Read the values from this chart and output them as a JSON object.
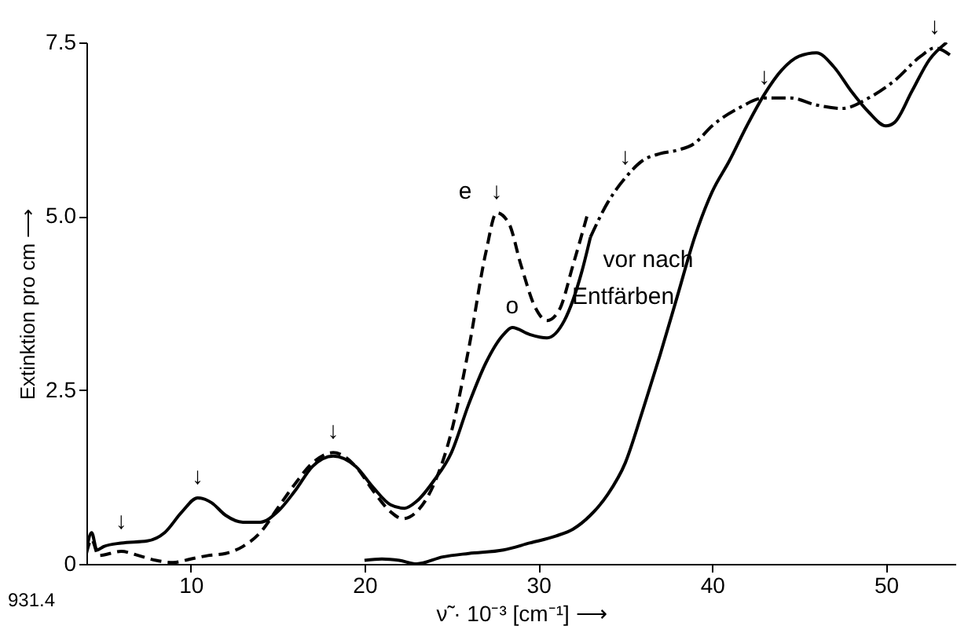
{
  "chart_data": {
    "type": "line",
    "xlabel": "ν̃ · 10⁻³ [cm⁻¹] ⟶",
    "ylabel": "Extinktion pro cm ⟶",
    "xlim": [
      4,
      54
    ],
    "ylim": [
      0,
      7.5
    ],
    "xticks": [
      10,
      20,
      30,
      40,
      50
    ],
    "yticks": [
      0,
      2.5,
      {
        "value": 5,
        "label": "5.0"
      },
      7.5
    ],
    "grid": false,
    "series": [
      {
        "color": "#000000",
        "line_style": "solid",
        "x": [
          4.0,
          4.3,
          4.6,
          5,
          6,
          7.5,
          8.5,
          9.5,
          10.4,
          11.2,
          12,
          13,
          14,
          15,
          16,
          17,
          18.2,
          19.5,
          20.5,
          21.5,
          22.3,
          23,
          24,
          25,
          26,
          27,
          28,
          28.5,
          29.5,
          30.5,
          31.5,
          32.5,
          33
        ],
        "values": [
          0.2,
          0.45,
          0.2,
          0.25,
          0.3,
          0.33,
          0.45,
          0.75,
          0.95,
          0.88,
          0.7,
          0.6,
          0.6,
          0.75,
          1.05,
          1.4,
          1.55,
          1.4,
          1.1,
          0.85,
          0.8,
          0.9,
          1.2,
          1.6,
          2.3,
          2.9,
          3.3,
          3.4,
          3.3,
          3.25,
          3.5,
          4.2,
          4.7
        ]
      },
      {
        "color": "#000000",
        "line_style": "dashed",
        "x": [
          4,
          4.3,
          4.7,
          6,
          7,
          8,
          9,
          10,
          11,
          12,
          13,
          14,
          15,
          16,
          17,
          18.2,
          19.5,
          20.5,
          21.5,
          22.2,
          23,
          24,
          25,
          26,
          27,
          27.6,
          28.3,
          29,
          29.8,
          30.5,
          31.2,
          32,
          32.8
        ],
        "values": [
          0.15,
          0.35,
          0.12,
          0.18,
          0.12,
          0.05,
          0.02,
          0.07,
          0.12,
          0.15,
          0.25,
          0.45,
          0.8,
          1.15,
          1.45,
          1.6,
          1.4,
          1.05,
          0.75,
          0.65,
          0.75,
          1.15,
          1.9,
          3.1,
          4.5,
          5.05,
          4.9,
          4.3,
          3.7,
          3.5,
          3.65,
          4.3,
          5.0
        ]
      },
      {
        "color": "#000000",
        "line_style": "dashdot",
        "x": [
          33,
          34,
          35,
          36,
          37,
          38,
          39,
          40,
          41.5,
          43,
          44.5,
          46,
          47.5,
          49,
          50.5,
          52,
          52.8,
          53.8
        ],
        "values": [
          4.7,
          5.2,
          5.55,
          5.8,
          5.9,
          5.95,
          6.05,
          6.3,
          6.55,
          6.7,
          6.7,
          6.6,
          6.55,
          6.7,
          6.95,
          7.3,
          7.42,
          7.3
        ]
      },
      {
        "color": "#000000",
        "line_style": "solid",
        "x": [
          20,
          21,
          22,
          23,
          24.5,
          26,
          28,
          29.5,
          31,
          32,
          33,
          34,
          35,
          36,
          37,
          38,
          39,
          40,
          41,
          42,
          43,
          44,
          45,
          46,
          47,
          48,
          49,
          50,
          50.5,
          51.5,
          52.5,
          53.5
        ],
        "values": [
          0.05,
          0.07,
          0.05,
          0,
          0.1,
          0.15,
          0.2,
          0.3,
          0.4,
          0.5,
          0.7,
          1.0,
          1.45,
          2.2,
          3.0,
          3.85,
          4.7,
          5.35,
          5.8,
          6.3,
          6.75,
          7.1,
          7.3,
          7.35,
          7.15,
          6.8,
          6.5,
          6.3,
          6.35,
          6.8,
          7.25,
          7.5
        ]
      }
    ],
    "annotations": [
      {
        "text": "e",
        "x": 27.6,
        "y": 5.05
      },
      {
        "text": "o",
        "x": 28.5,
        "y": 3.4
      },
      {
        "text": "vor nach",
        "x": 33,
        "y": 4.7
      },
      {
        "text": "Entfärben",
        "x": 38,
        "y": 3.85
      },
      {
        "text": "↓",
        "x": 6.0,
        "y": 0.3
      },
      {
        "text": "↓",
        "x": 10.4,
        "y": 0.95
      },
      {
        "text": "↓",
        "x": 18.2,
        "y": 1.6
      },
      {
        "text": "↓",
        "x": 27.6,
        "y": 5.05
      },
      {
        "text": "↓",
        "x": 35,
        "y": 5.55
      },
      {
        "text": "↓",
        "x": 43,
        "y": 6.7
      },
      {
        "text": "↓",
        "x": 52.8,
        "y": 7.42
      },
      "931.4"
    ]
  }
}
